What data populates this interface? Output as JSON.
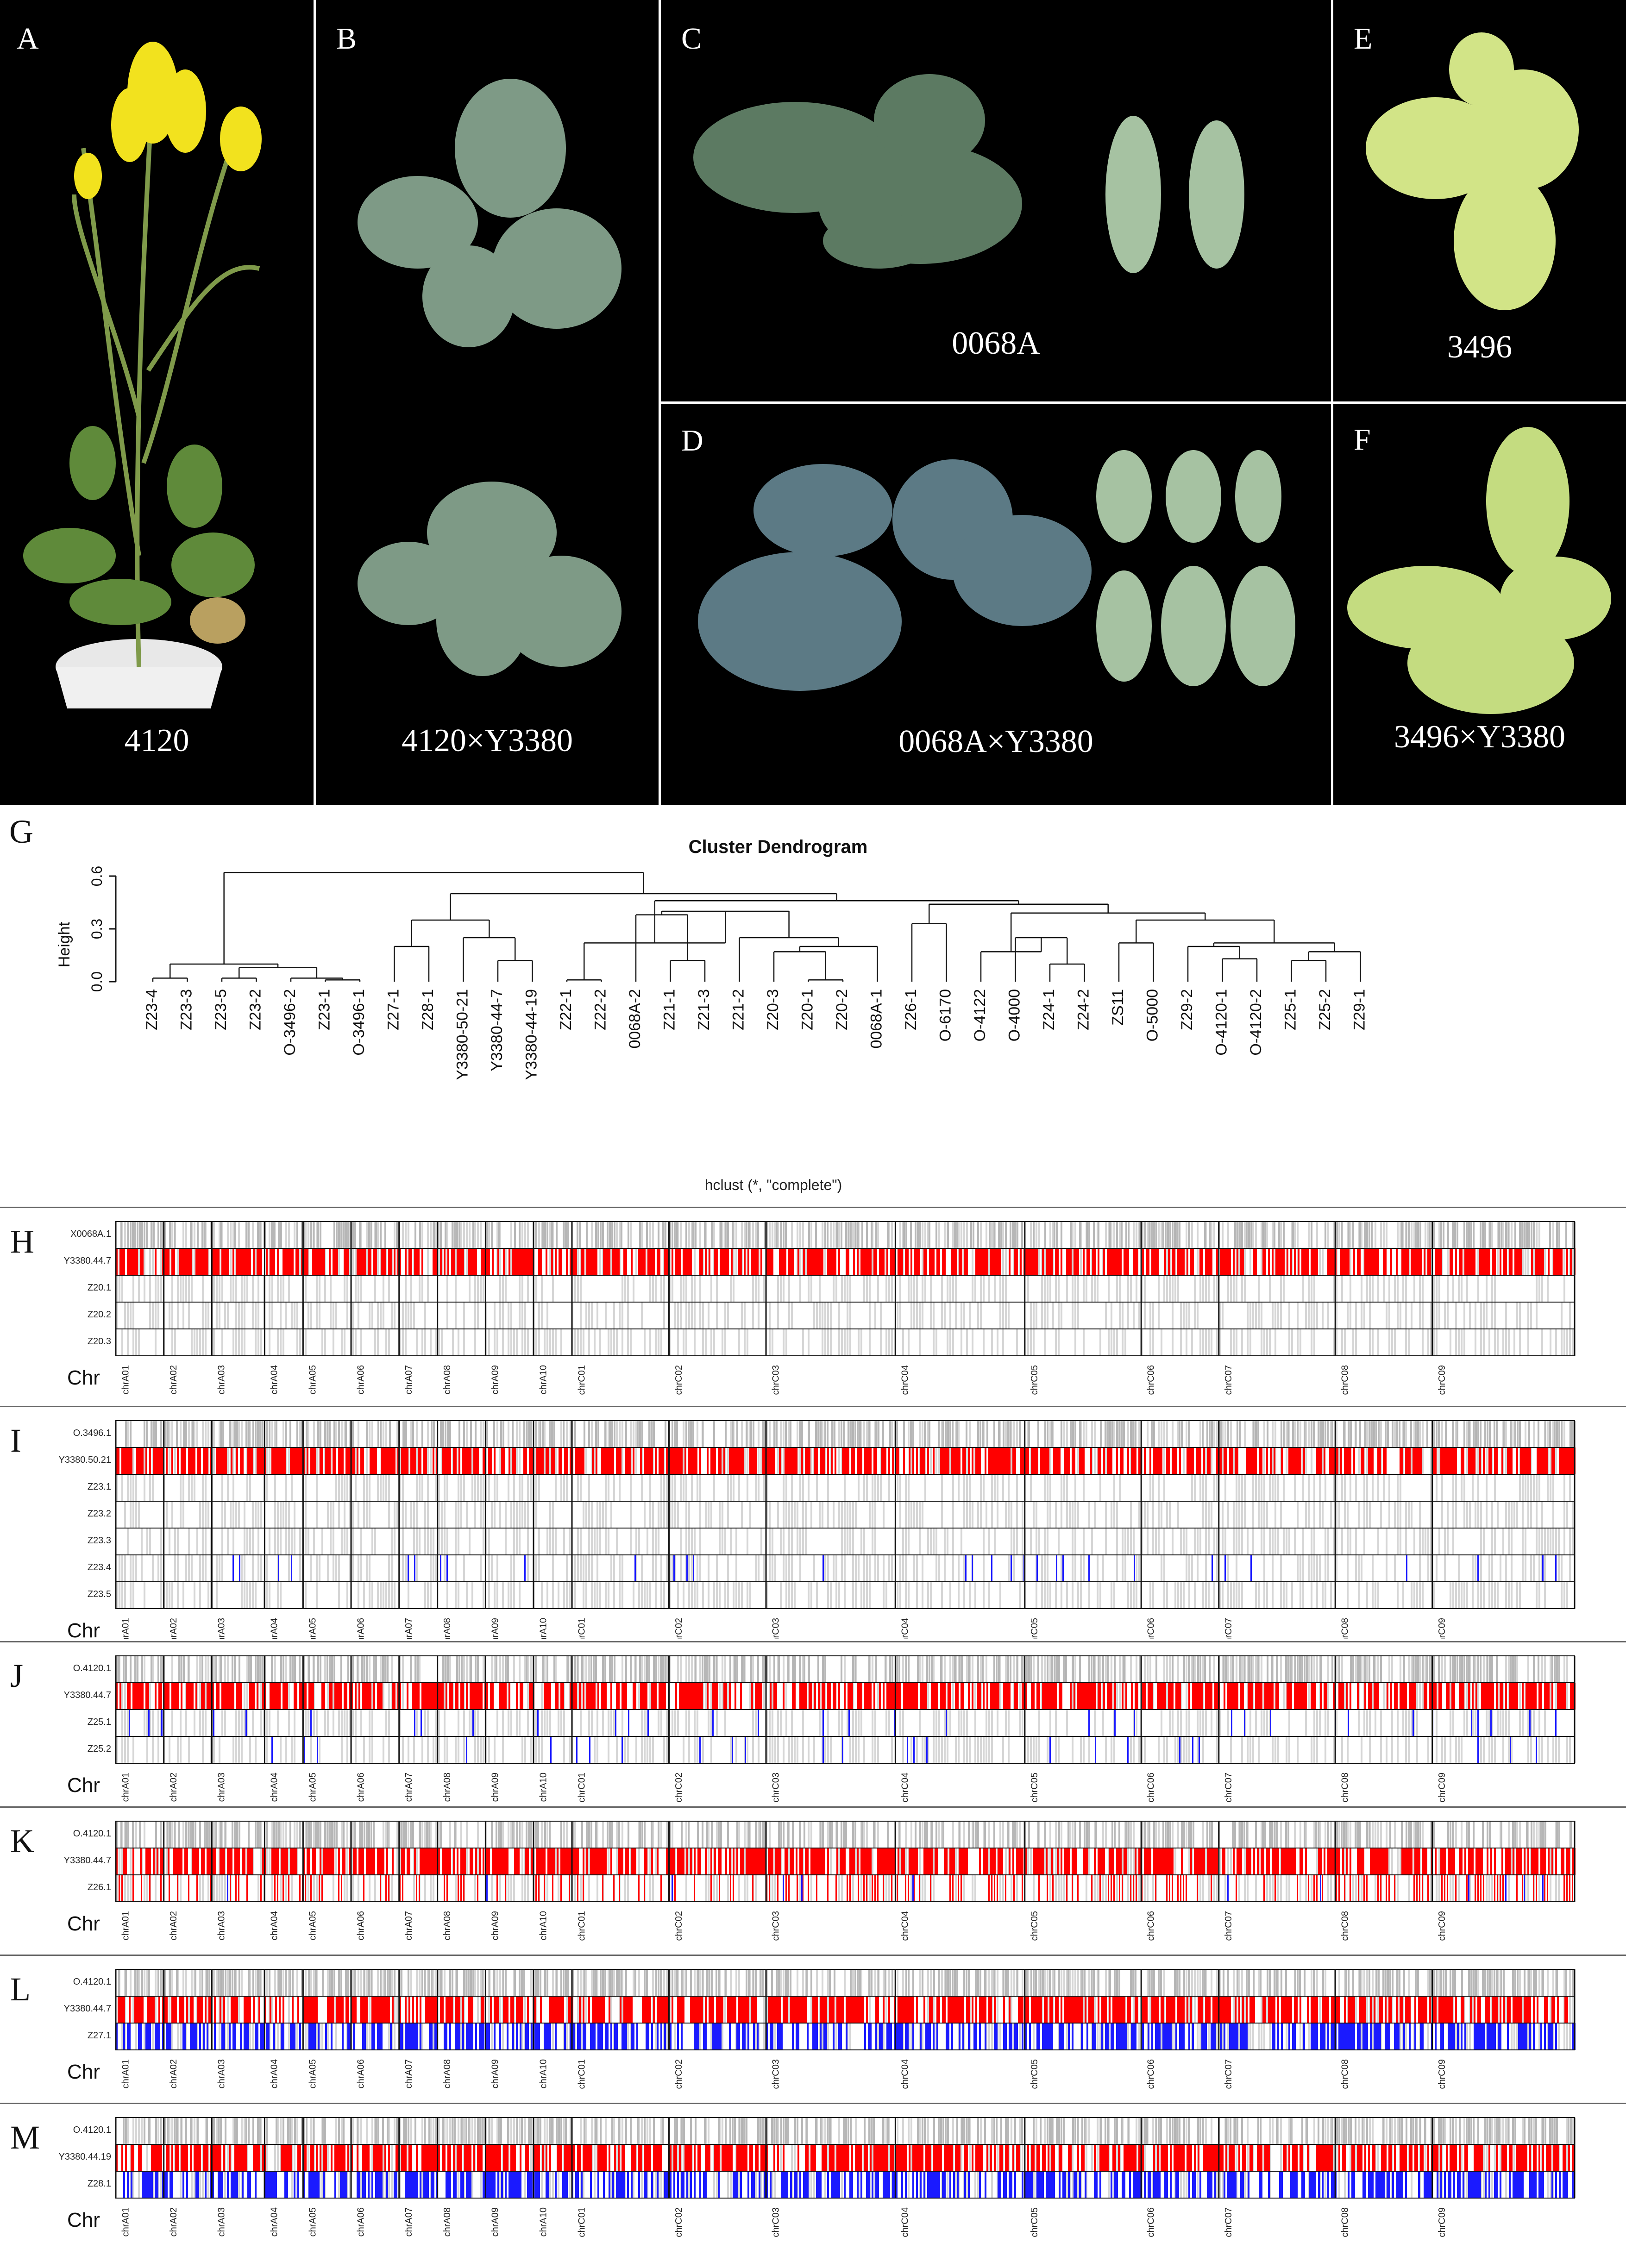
{
  "photo_panels": {
    "A": {
      "letter": "A",
      "caption": "4120"
    },
    "B": {
      "letter": "B",
      "caption": "4120×Y3380"
    },
    "C": {
      "letter": "C",
      "caption": "0068A"
    },
    "D": {
      "letter": "D",
      "caption": "0068A×Y3380"
    },
    "E": {
      "letter": "E",
      "caption": "3496"
    },
    "F": {
      "letter": "F",
      "caption": "3496×Y3380"
    }
  },
  "colors": {
    "plant_green": "#5b7a5a",
    "flower_yellow": "#f2e21e",
    "leaf_yellow": "#c9e07a",
    "pot_white": "#f0f0f0",
    "red": "#ff0000",
    "blue": "#1a1aff",
    "grey": "#bdbdbd"
  },
  "dendrogram": {
    "panel_letter": "G",
    "title": "Cluster Dendrogram",
    "ylabel": "Height",
    "yticks": [
      "0.0",
      "0.3",
      "0.6"
    ],
    "method": "hclust (*, \"complete\")",
    "leaves": [
      "Z23-4",
      "Z23-3",
      "Z23-5",
      "Z23-2",
      "O-3496-2",
      "Z23-1",
      "O-3496-1",
      "Z27-1",
      "Z28-1",
      "Y3380-50-21",
      "Y3380-44-7",
      "Y3380-44-19",
      "Z22-1",
      "Z22-2",
      "0068A-2",
      "Z21-1",
      "Z21-3",
      "Z21-2",
      "Z20-3",
      "Z20-1",
      "Z20-2",
      "0068A-1",
      "Z26-1",
      "O-6170",
      "O-4122",
      "O-4000",
      "Z24-1",
      "Z24-2",
      "ZS11",
      "O-5000",
      "Z29-2",
      "O-4120-1",
      "O-4120-2",
      "Z25-1",
      "Z25-2",
      "Z29-1"
    ]
  },
  "chromosomes": [
    "chrA01",
    "chrA02",
    "chrA03",
    "chrA04",
    "chrA05",
    "chrA06",
    "chrA07",
    "chrA08",
    "chrA09",
    "chrA10",
    "chrC01",
    "chrC02",
    "chrC03",
    "chrC04",
    "chrC05",
    "chrC06",
    "chrC07",
    "chrC08",
    "chrC09"
  ],
  "chr_axis_label": "Chr",
  "genotype_panels": [
    {
      "letter": "H",
      "rows": [
        "X0068A.1",
        "Y3380.44.7",
        "Z20.1",
        "Z20.2",
        "Z20.3"
      ],
      "patterns": [
        "grey",
        "red",
        "white",
        "white",
        "white"
      ]
    },
    {
      "letter": "I",
      "rows": [
        "O.3496.1",
        "Y3380.50.21",
        "Z23.1",
        "Z23.2",
        "Z23.3",
        "Z23.4",
        "Z23.5"
      ],
      "patterns": [
        "grey",
        "red",
        "white",
        "white",
        "white",
        "sparse-blue",
        "white"
      ]
    },
    {
      "letter": "J",
      "rows": [
        "O.4120.1",
        "Y3380.44.7",
        "Z25.1",
        "Z25.2"
      ],
      "patterns": [
        "grey",
        "red",
        "sparse-blue",
        "sparse-blue"
      ]
    },
    {
      "letter": "K",
      "rows": [
        "O.4120.1",
        "Y3380.44.7",
        "Z26.1"
      ],
      "patterns": [
        "grey",
        "red",
        "red-mixed"
      ]
    },
    {
      "letter": "L",
      "rows": [
        "O.4120.1",
        "Y3380.44.7",
        "Z27.1"
      ],
      "patterns": [
        "grey",
        "red",
        "blue"
      ]
    },
    {
      "letter": "M",
      "rows": [
        "O.4120.1",
        "Y3380.44.19",
        "Z28.1"
      ],
      "patterns": [
        "grey",
        "red",
        "blue"
      ]
    }
  ]
}
